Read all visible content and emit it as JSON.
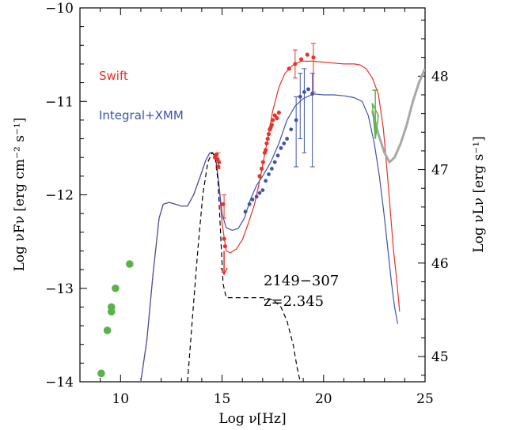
{
  "chart_data": {
    "type": "scatter",
    "xlabel": "Log ν[Hz]",
    "ylabel": "Log νFν [erg cm⁻² s⁻¹]",
    "ylabel_right": "Log νLν [erg s⁻¹]",
    "xlim": [
      8,
      25
    ],
    "ylim": [
      -14,
      -10
    ],
    "ylim_right": [
      44.73,
      48.73
    ],
    "xticks": [
      10,
      15,
      20,
      25
    ],
    "yticks": [
      -14,
      -13,
      -12,
      -11,
      -10
    ],
    "yticks_right": [
      45,
      46,
      47,
      48
    ],
    "legend_placement": "left",
    "annotations": [
      "2149−307",
      "z=2.345"
    ],
    "colors": {
      "swift": "#e8322b",
      "integral": "#3f55a8",
      "green": "#5ab34a",
      "gray": "#a8a8a8"
    },
    "series": [
      {
        "name": "Swift",
        "kind": "points",
        "points": [
          [
            14.65,
            -11.6
          ],
          [
            14.72,
            -11.57
          ],
          [
            14.78,
            -11.62
          ],
          [
            14.85,
            -11.65
          ],
          [
            14.82,
            -11.7
          ],
          [
            15.05,
            -12.1
          ],
          [
            15.1,
            -12.47
          ],
          [
            15.15,
            -12.55
          ],
          [
            16.85,
            -11.8
          ],
          [
            16.95,
            -11.72
          ],
          [
            17.02,
            -11.65
          ],
          [
            17.1,
            -11.55
          ],
          [
            17.15,
            -11.52
          ],
          [
            17.2,
            -11.45
          ],
          [
            17.25,
            -11.4
          ],
          [
            17.3,
            -11.35
          ],
          [
            17.35,
            -11.3
          ],
          [
            17.4,
            -11.28
          ],
          [
            17.45,
            -11.25
          ],
          [
            17.5,
            -11.2
          ],
          [
            17.6,
            -11.15
          ],
          [
            17.7,
            -11.18
          ],
          [
            17.8,
            -11.12
          ],
          [
            18.3,
            -10.65
          ],
          [
            18.6,
            -10.6
          ],
          [
            18.9,
            -10.55
          ],
          [
            19.2,
            -10.5
          ],
          [
            19.5,
            -10.53
          ]
        ],
        "errorbars": [
          [
            14.8,
            -11.62,
            -11.55,
            -11.72
          ],
          [
            15.1,
            -12.1,
            -12.0,
            -12.25
          ],
          [
            18.6,
            -10.6,
            -10.45,
            -10.75
          ],
          [
            19.5,
            -10.53,
            -10.38,
            -10.9
          ]
        ]
      },
      {
        "name": "Integral+XMM",
        "kind": "points",
        "points": [
          [
            16.15,
            -12.18
          ],
          [
            16.35,
            -12.1
          ],
          [
            16.5,
            -12.05
          ],
          [
            16.7,
            -12.02
          ],
          [
            16.85,
            -11.98
          ],
          [
            17.0,
            -11.95
          ],
          [
            17.15,
            -11.85
          ],
          [
            17.3,
            -11.78
          ],
          [
            17.45,
            -11.72
          ],
          [
            17.6,
            -11.65
          ],
          [
            17.75,
            -11.58
          ],
          [
            17.9,
            -11.5
          ],
          [
            18.05,
            -11.45
          ],
          [
            18.2,
            -11.4
          ],
          [
            18.4,
            -11.3
          ],
          [
            18.65,
            -11.2
          ],
          [
            18.85,
            -10.95
          ],
          [
            19.05,
            -10.9
          ],
          [
            19.25,
            -10.87
          ],
          [
            19.45,
            -10.92
          ]
        ],
        "errorbars": [
          [
            18.65,
            -11.2,
            -10.95,
            -11.7
          ],
          [
            18.85,
            -10.95,
            -10.7,
            -11.4
          ],
          [
            19.05,
            -10.9,
            -10.65,
            -11.55
          ],
          [
            19.45,
            -10.92,
            -10.7,
            -11.7
          ]
        ]
      },
      {
        "name": "",
        "kind": "points",
        "points": [
          [
            9.05,
            -13.91
          ],
          [
            9.35,
            -13.45
          ],
          [
            9.55,
            -13.2
          ],
          [
            9.55,
            -13.25
          ],
          [
            9.75,
            -13.0
          ],
          [
            10.45,
            -12.74
          ]
        ]
      },
      {
        "name": "",
        "kind": "upper_limit",
        "points": [
          [
            15.1,
            -12.6
          ],
          [
            15.1,
            -12.85
          ]
        ]
      },
      {
        "name": "",
        "kind": "line",
        "style": "red-model",
        "points": [
          [
            11.0,
            -14.0
          ],
          [
            11.3,
            -13.55
          ],
          [
            11.6,
            -12.85
          ],
          [
            11.9,
            -12.25
          ],
          [
            12.1,
            -12.1
          ],
          [
            12.4,
            -12.08
          ],
          [
            12.7,
            -12.1
          ],
          [
            13.0,
            -12.12
          ],
          [
            13.3,
            -12.12
          ],
          [
            13.6,
            -12.0
          ],
          [
            13.9,
            -11.82
          ],
          [
            14.2,
            -11.63
          ],
          [
            14.4,
            -11.55
          ],
          [
            14.55,
            -11.55
          ],
          [
            14.7,
            -11.63
          ],
          [
            14.85,
            -11.9
          ],
          [
            15.0,
            -12.3
          ],
          [
            15.2,
            -12.6
          ],
          [
            15.4,
            -12.62
          ],
          [
            15.7,
            -12.58
          ],
          [
            16.0,
            -12.48
          ],
          [
            16.3,
            -12.3
          ],
          [
            16.6,
            -12.1
          ],
          [
            16.9,
            -11.8
          ],
          [
            17.2,
            -11.45
          ],
          [
            17.5,
            -11.1
          ],
          [
            17.8,
            -10.85
          ],
          [
            18.1,
            -10.7
          ],
          [
            18.5,
            -10.61
          ],
          [
            18.9,
            -10.57
          ],
          [
            19.5,
            -10.57
          ],
          [
            20.0,
            -10.58
          ],
          [
            20.5,
            -10.59
          ],
          [
            21.0,
            -10.6
          ],
          [
            21.5,
            -10.6
          ],
          [
            21.8,
            -10.61
          ],
          [
            22.1,
            -10.65
          ],
          [
            22.4,
            -10.75
          ],
          [
            22.7,
            -10.92
          ],
          [
            22.95,
            -11.3
          ],
          [
            23.15,
            -11.8
          ],
          [
            23.3,
            -12.2
          ],
          [
            23.45,
            -12.6
          ],
          [
            23.6,
            -12.9
          ],
          [
            23.75,
            -13.25
          ]
        ]
      },
      {
        "name": "",
        "kind": "line",
        "style": "blue-model",
        "points": [
          [
            11.0,
            -14.0
          ],
          [
            11.3,
            -13.55
          ],
          [
            11.6,
            -12.85
          ],
          [
            11.9,
            -12.25
          ],
          [
            12.1,
            -12.1
          ],
          [
            12.4,
            -12.08
          ],
          [
            12.7,
            -12.1
          ],
          [
            13.0,
            -12.12
          ],
          [
            13.3,
            -12.12
          ],
          [
            13.6,
            -12.0
          ],
          [
            13.9,
            -11.82
          ],
          [
            14.2,
            -11.63
          ],
          [
            14.4,
            -11.55
          ],
          [
            14.55,
            -11.55
          ],
          [
            14.7,
            -11.63
          ],
          [
            14.85,
            -11.9
          ],
          [
            15.0,
            -12.2
          ],
          [
            15.2,
            -12.35
          ],
          [
            15.5,
            -12.38
          ],
          [
            15.8,
            -12.36
          ],
          [
            16.1,
            -12.25
          ],
          [
            16.4,
            -12.05
          ],
          [
            16.7,
            -11.9
          ],
          [
            17.0,
            -11.8
          ],
          [
            17.4,
            -11.65
          ],
          [
            17.8,
            -11.45
          ],
          [
            18.2,
            -11.2
          ],
          [
            18.6,
            -11.05
          ],
          [
            19.0,
            -10.97
          ],
          [
            19.5,
            -10.92
          ],
          [
            20.0,
            -10.93
          ],
          [
            20.5,
            -10.93
          ],
          [
            21.0,
            -10.94
          ],
          [
            21.5,
            -10.96
          ],
          [
            21.9,
            -11.0
          ],
          [
            22.2,
            -11.15
          ],
          [
            22.5,
            -11.45
          ],
          [
            22.75,
            -11.8
          ],
          [
            22.95,
            -12.15
          ],
          [
            23.15,
            -12.55
          ],
          [
            23.35,
            -12.95
          ],
          [
            23.5,
            -13.2
          ],
          [
            23.65,
            -13.38
          ]
        ]
      },
      {
        "name": "",
        "kind": "line",
        "style": "dashed",
        "points": [
          [
            13.3,
            -14.0
          ],
          [
            13.55,
            -13.3
          ],
          [
            13.8,
            -12.6
          ],
          [
            14.05,
            -12.0
          ],
          [
            14.3,
            -11.65
          ],
          [
            14.5,
            -11.55
          ],
          [
            14.65,
            -11.58
          ],
          [
            14.8,
            -11.85
          ],
          [
            14.95,
            -12.5
          ],
          [
            15.05,
            -12.95
          ],
          [
            15.2,
            -13.1
          ],
          [
            16.0,
            -13.1
          ],
          [
            17.0,
            -13.1
          ],
          [
            17.5,
            -13.12
          ],
          [
            17.9,
            -13.2
          ],
          [
            18.2,
            -13.35
          ],
          [
            18.5,
            -13.6
          ],
          [
            18.7,
            -13.85
          ],
          [
            18.85,
            -14.0
          ]
        ]
      },
      {
        "name": "",
        "kind": "line",
        "style": "gray-thick",
        "points": [
          [
            22.4,
            -11.1
          ],
          [
            22.7,
            -11.35
          ],
          [
            23.0,
            -11.55
          ],
          [
            23.25,
            -11.65
          ],
          [
            23.5,
            -11.6
          ],
          [
            23.8,
            -11.45
          ],
          [
            24.1,
            -11.25
          ],
          [
            24.4,
            -11.0
          ],
          [
            24.7,
            -10.8
          ],
          [
            25.0,
            -10.65
          ]
        ]
      },
      {
        "name": "",
        "kind": "bowtie",
        "points": [
          [
            22.4,
            -10.88
          ],
          [
            22.7,
            -10.88
          ],
          [
            22.55,
            -11.4
          ],
          [
            22.4,
            -11.02
          ],
          [
            22.7,
            -11.15
          ]
        ]
      }
    ]
  }
}
